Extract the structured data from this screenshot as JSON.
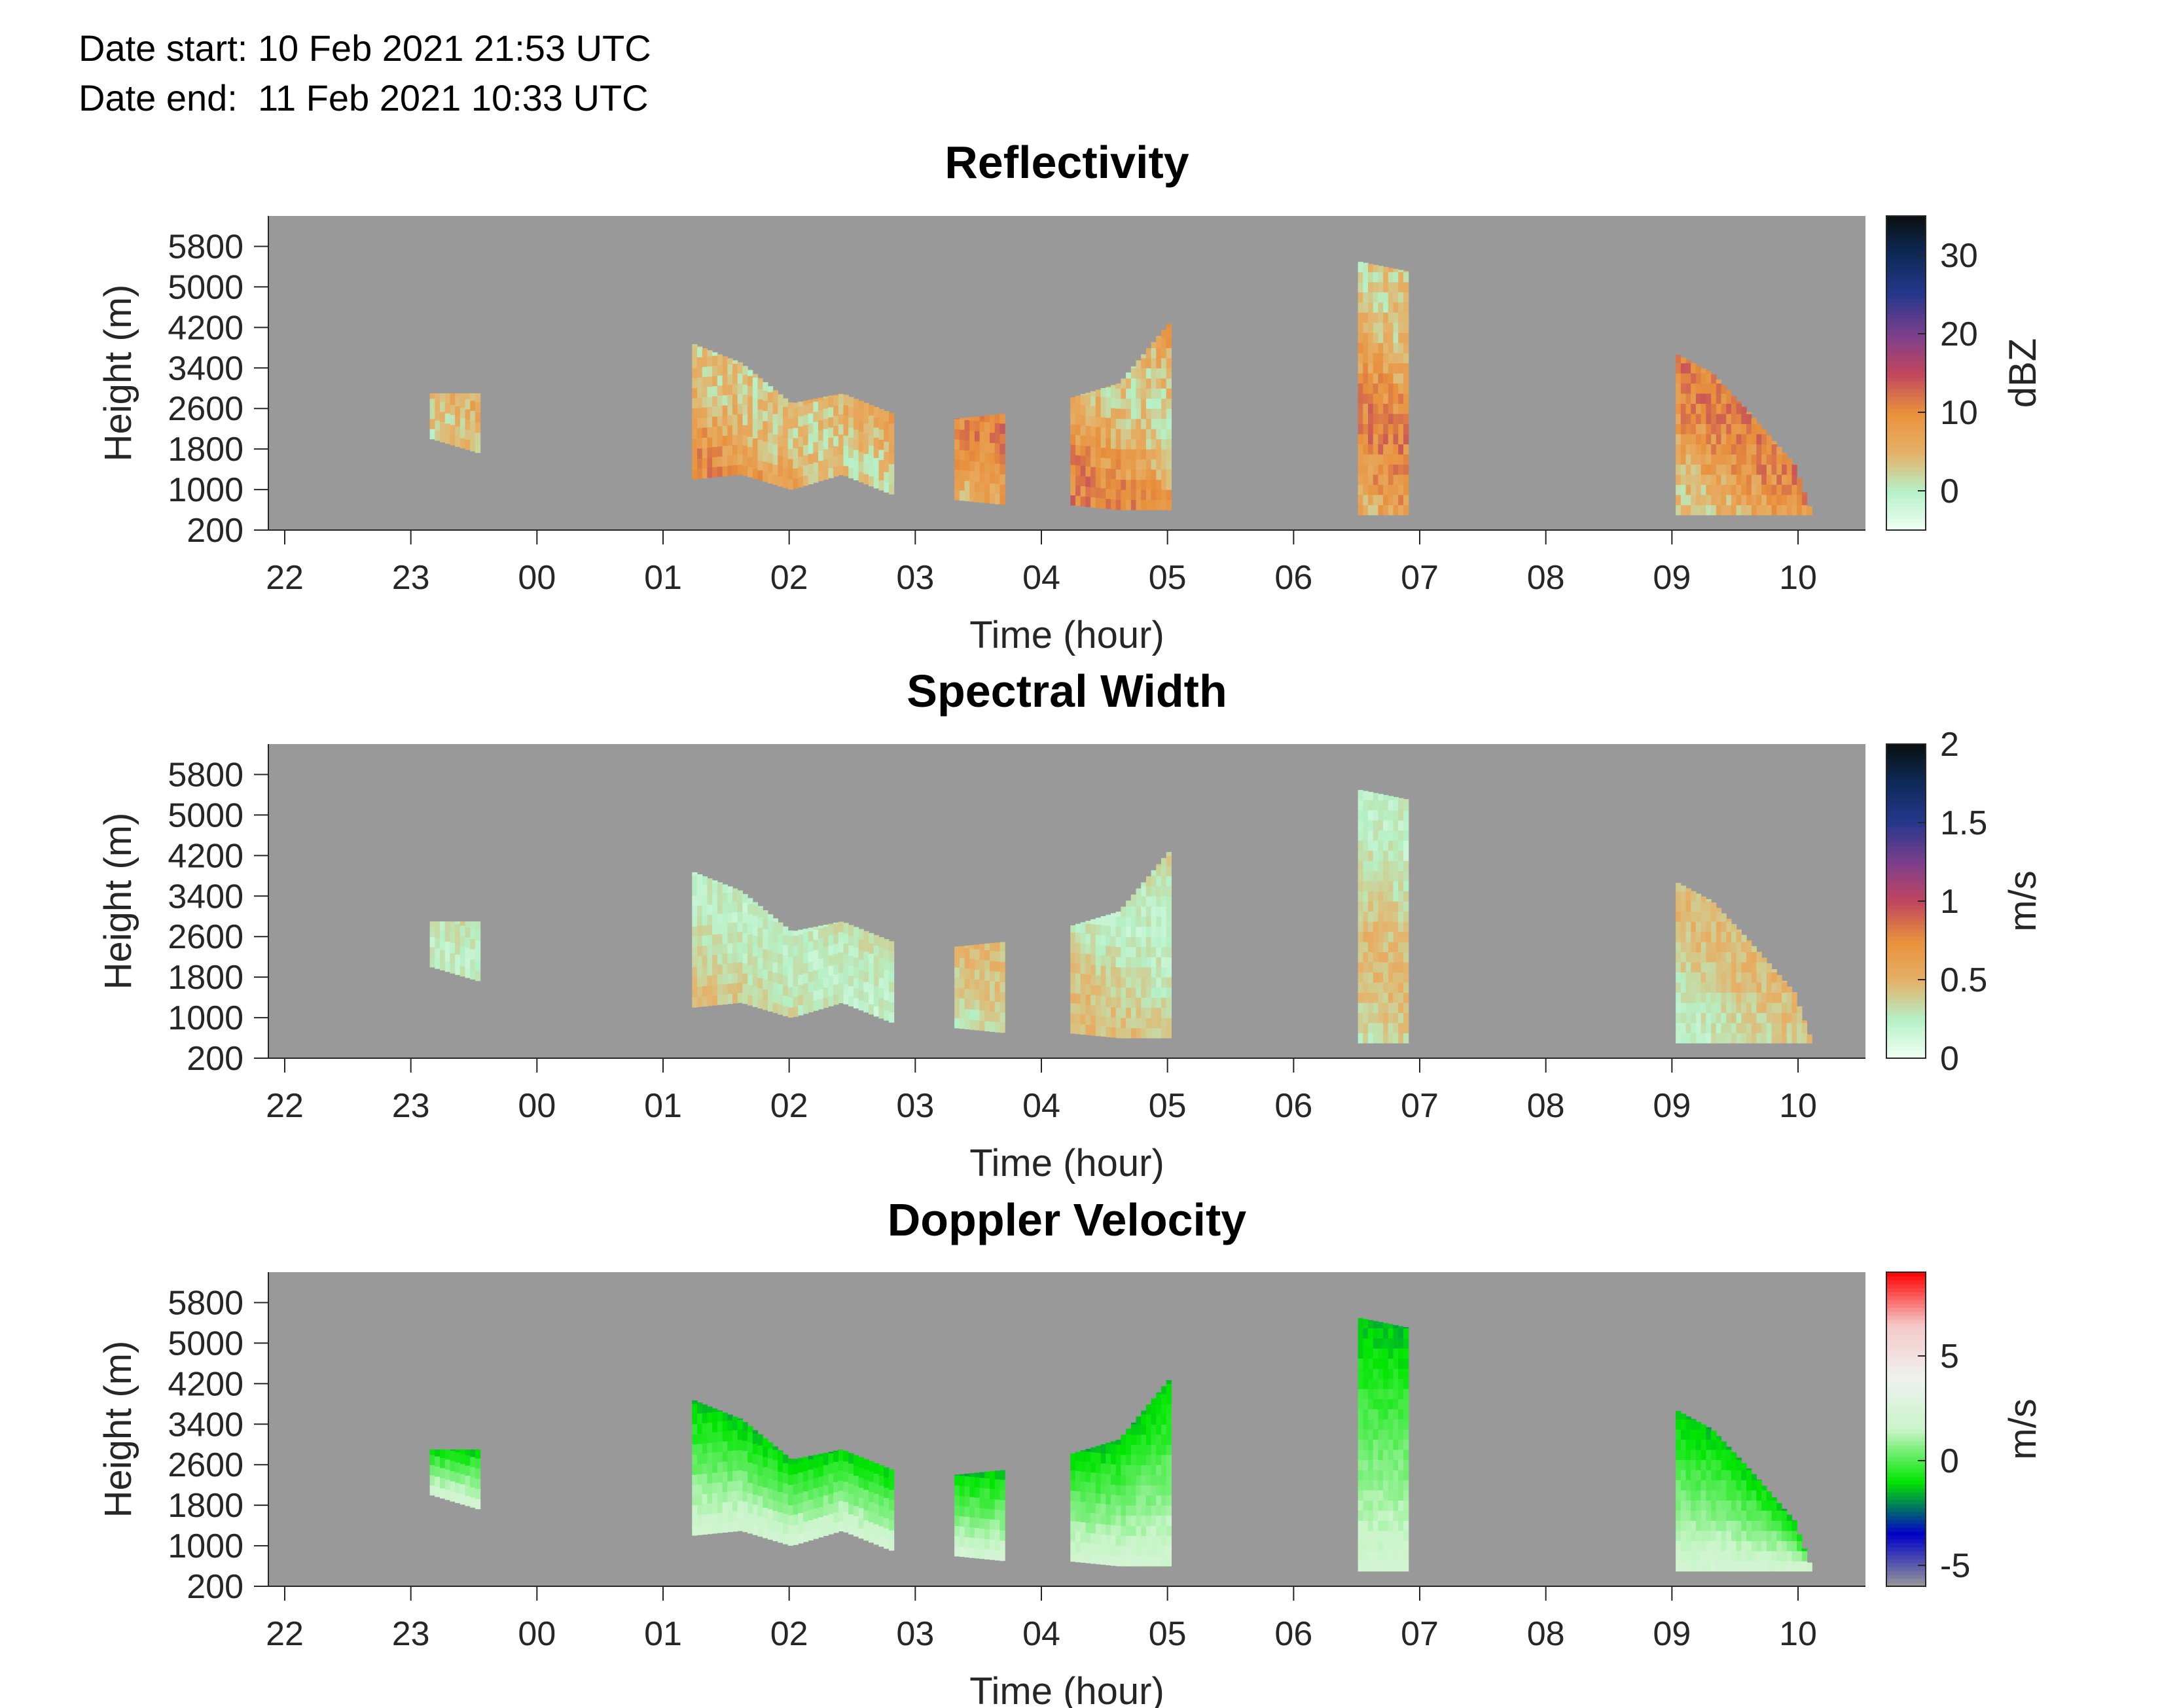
{
  "header": {
    "date_start": "Date start: 10 Feb 2021 21:53 UTC",
    "date_end": "Date end:  11 Feb 2021 10:33 UTC"
  },
  "chart_data": [
    {
      "type": "heatmap",
      "title": "Reflectivity",
      "xlabel": "Time (hour)",
      "ylabel": "Height (m)",
      "x_ticks": [
        "22",
        "23",
        "00",
        "01",
        "02",
        "03",
        "04",
        "05",
        "06",
        "07",
        "08",
        "09",
        "10"
      ],
      "y_ticks": [
        "200",
        "1000",
        "1800",
        "2600",
        "3400",
        "4200",
        "5000",
        "5800"
      ],
      "xlim_hours_since_22": [
        -0.15,
        12.55
      ],
      "ylim": [
        200,
        6400
      ],
      "colorbar": {
        "label": "dBZ",
        "ticks": [
          "0",
          "10",
          "20",
          "30"
        ],
        "range": [
          -5,
          35
        ],
        "stops": [
          "#f0fff5",
          "#b5f0c5",
          "#e6b066",
          "#e8903c",
          "#c0455e",
          "#7a3f8c",
          "#26388c",
          "#0e2a5a",
          "#0a1010"
        ]
      },
      "no_data_color": "#999999",
      "field_range": [
        -2,
        14
      ]
    },
    {
      "type": "heatmap",
      "title": "Spectral Width",
      "xlabel": "Time (hour)",
      "ylabel": "Height (m)",
      "x_ticks": [
        "22",
        "23",
        "00",
        "01",
        "02",
        "03",
        "04",
        "05",
        "06",
        "07",
        "08",
        "09",
        "10"
      ],
      "y_ticks": [
        "200",
        "1000",
        "1800",
        "2600",
        "3400",
        "4200",
        "5000",
        "5800"
      ],
      "xlim_hours_since_22": [
        -0.15,
        12.55
      ],
      "ylim": [
        200,
        6400
      ],
      "colorbar": {
        "label": "m/s",
        "ticks": [
          "0",
          "0.5",
          "1",
          "1.5",
          "2"
        ],
        "range": [
          0,
          2
        ],
        "stops": [
          "#f0fff5",
          "#b5f0c5",
          "#e6b066",
          "#e8903c",
          "#c0455e",
          "#7a3f8c",
          "#26388c",
          "#0e2a5a",
          "#0a1010"
        ]
      },
      "no_data_color": "#999999",
      "field_range": [
        0.1,
        0.55
      ]
    },
    {
      "type": "heatmap",
      "title": "Doppler Velocity",
      "xlabel": "Time (hour)",
      "ylabel": "Height (m)",
      "x_ticks": [
        "22",
        "23",
        "00",
        "01",
        "02",
        "03",
        "04",
        "05",
        "06",
        "07",
        "08",
        "09",
        "10"
      ],
      "y_ticks": [
        "200",
        "1000",
        "1800",
        "2600",
        "3400",
        "4200",
        "5000",
        "5800"
      ],
      "xlim_hours_since_22": [
        -0.15,
        12.55
      ],
      "ylim": [
        200,
        6400
      ],
      "colorbar": {
        "label": "m/s",
        "ticks": [
          "-5",
          "0",
          "5"
        ],
        "range": [
          -6,
          9
        ],
        "stops": [
          "#999999",
          "#0000c8",
          "#00e600",
          "#c8f5c8",
          "#f0f0f0",
          "#f5c8c8",
          "#ff0000"
        ]
      },
      "no_data_color": "#999999",
      "field_range": [
        -1.5,
        2
      ]
    }
  ]
}
